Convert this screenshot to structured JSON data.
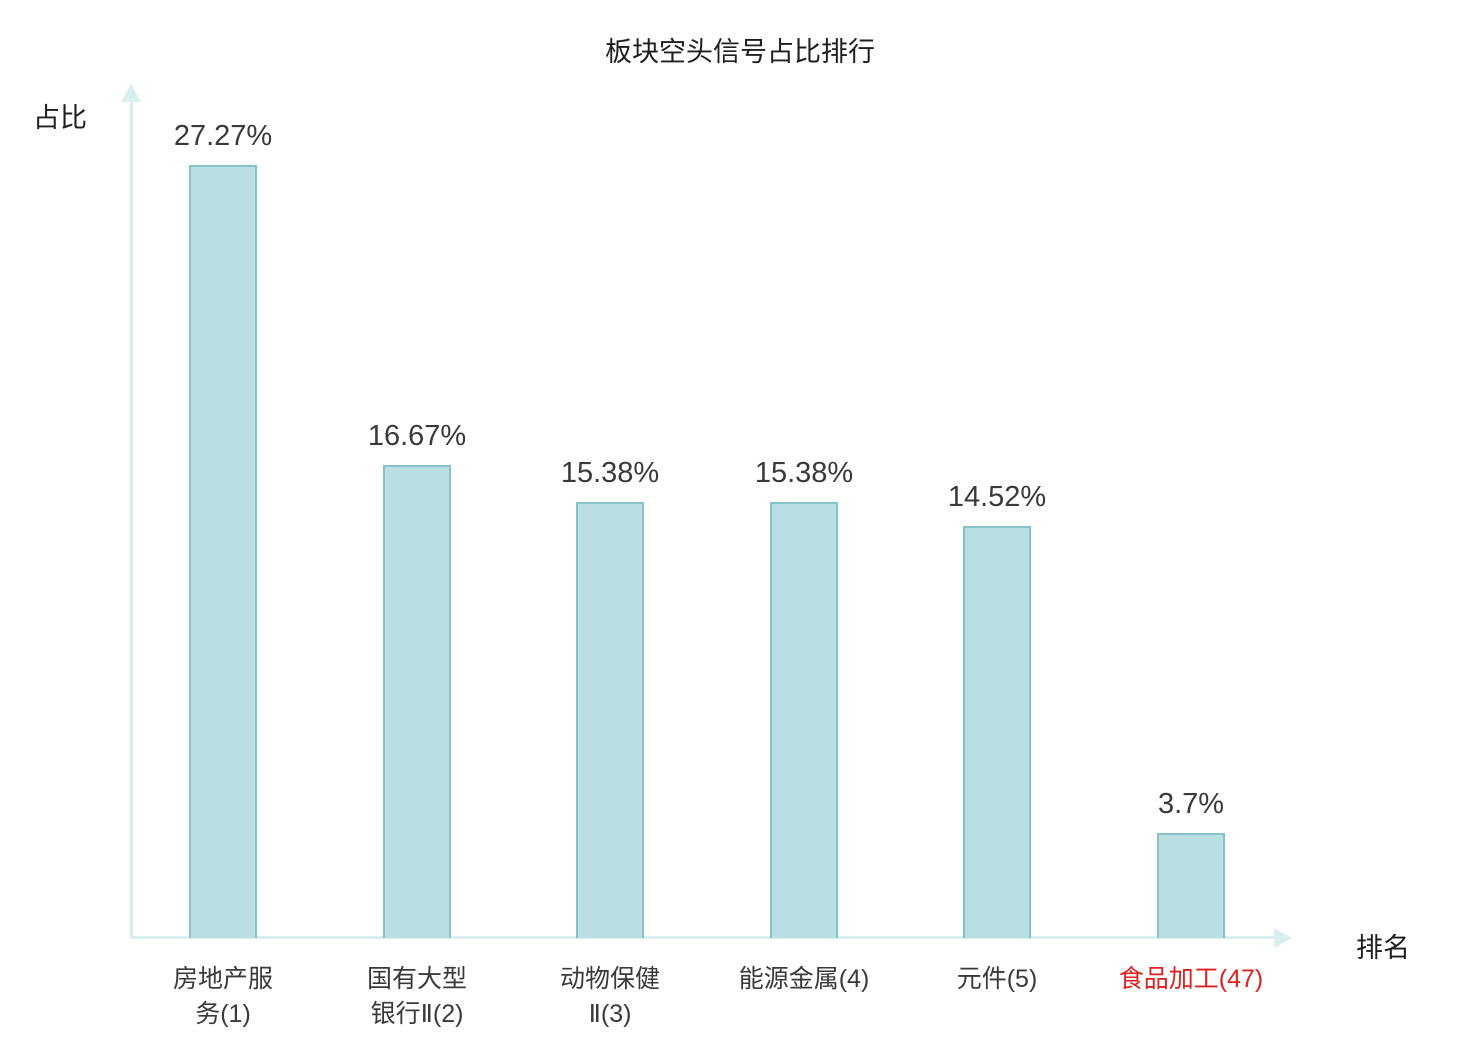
{
  "title": "板块空头信号占比排行",
  "axes": {
    "y_label": "占比",
    "x_label": "排名"
  },
  "chart_data": {
    "type": "bar",
    "title": "板块空头信号占比排行",
    "xlabel": "排名",
    "ylabel": "占比",
    "categories": [
      "房地产服务(1)",
      "国有大型银行Ⅱ(2)",
      "动物保健Ⅱ(3)",
      "能源金属(4)",
      "元件(5)",
      "食品加工(47)"
    ],
    "category_lines": [
      [
        "房地产服",
        "务(1)"
      ],
      [
        "国有大型",
        "银行Ⅱ(2)"
      ],
      [
        "动物保健",
        "Ⅱ(3)"
      ],
      [
        "能源金属(4)"
      ],
      [
        "元件(5)"
      ],
      [
        "食品加工(47)"
      ]
    ],
    "values": [
      27.27,
      16.67,
      15.38,
      15.38,
      14.52,
      3.7
    ],
    "value_labels": [
      "27.27%",
      "16.67%",
      "15.38%",
      "15.38%",
      "14.52%",
      "3.7%"
    ],
    "highlight_index": 5,
    "ylim": [
      0,
      30
    ],
    "grid": false,
    "legend": "none",
    "colors": {
      "bar_fill": "#b9dfe2",
      "bar_border": "#85c3c9",
      "axis": "#d9efef",
      "text": "#3a3a3a",
      "highlight": "#e02020"
    }
  }
}
